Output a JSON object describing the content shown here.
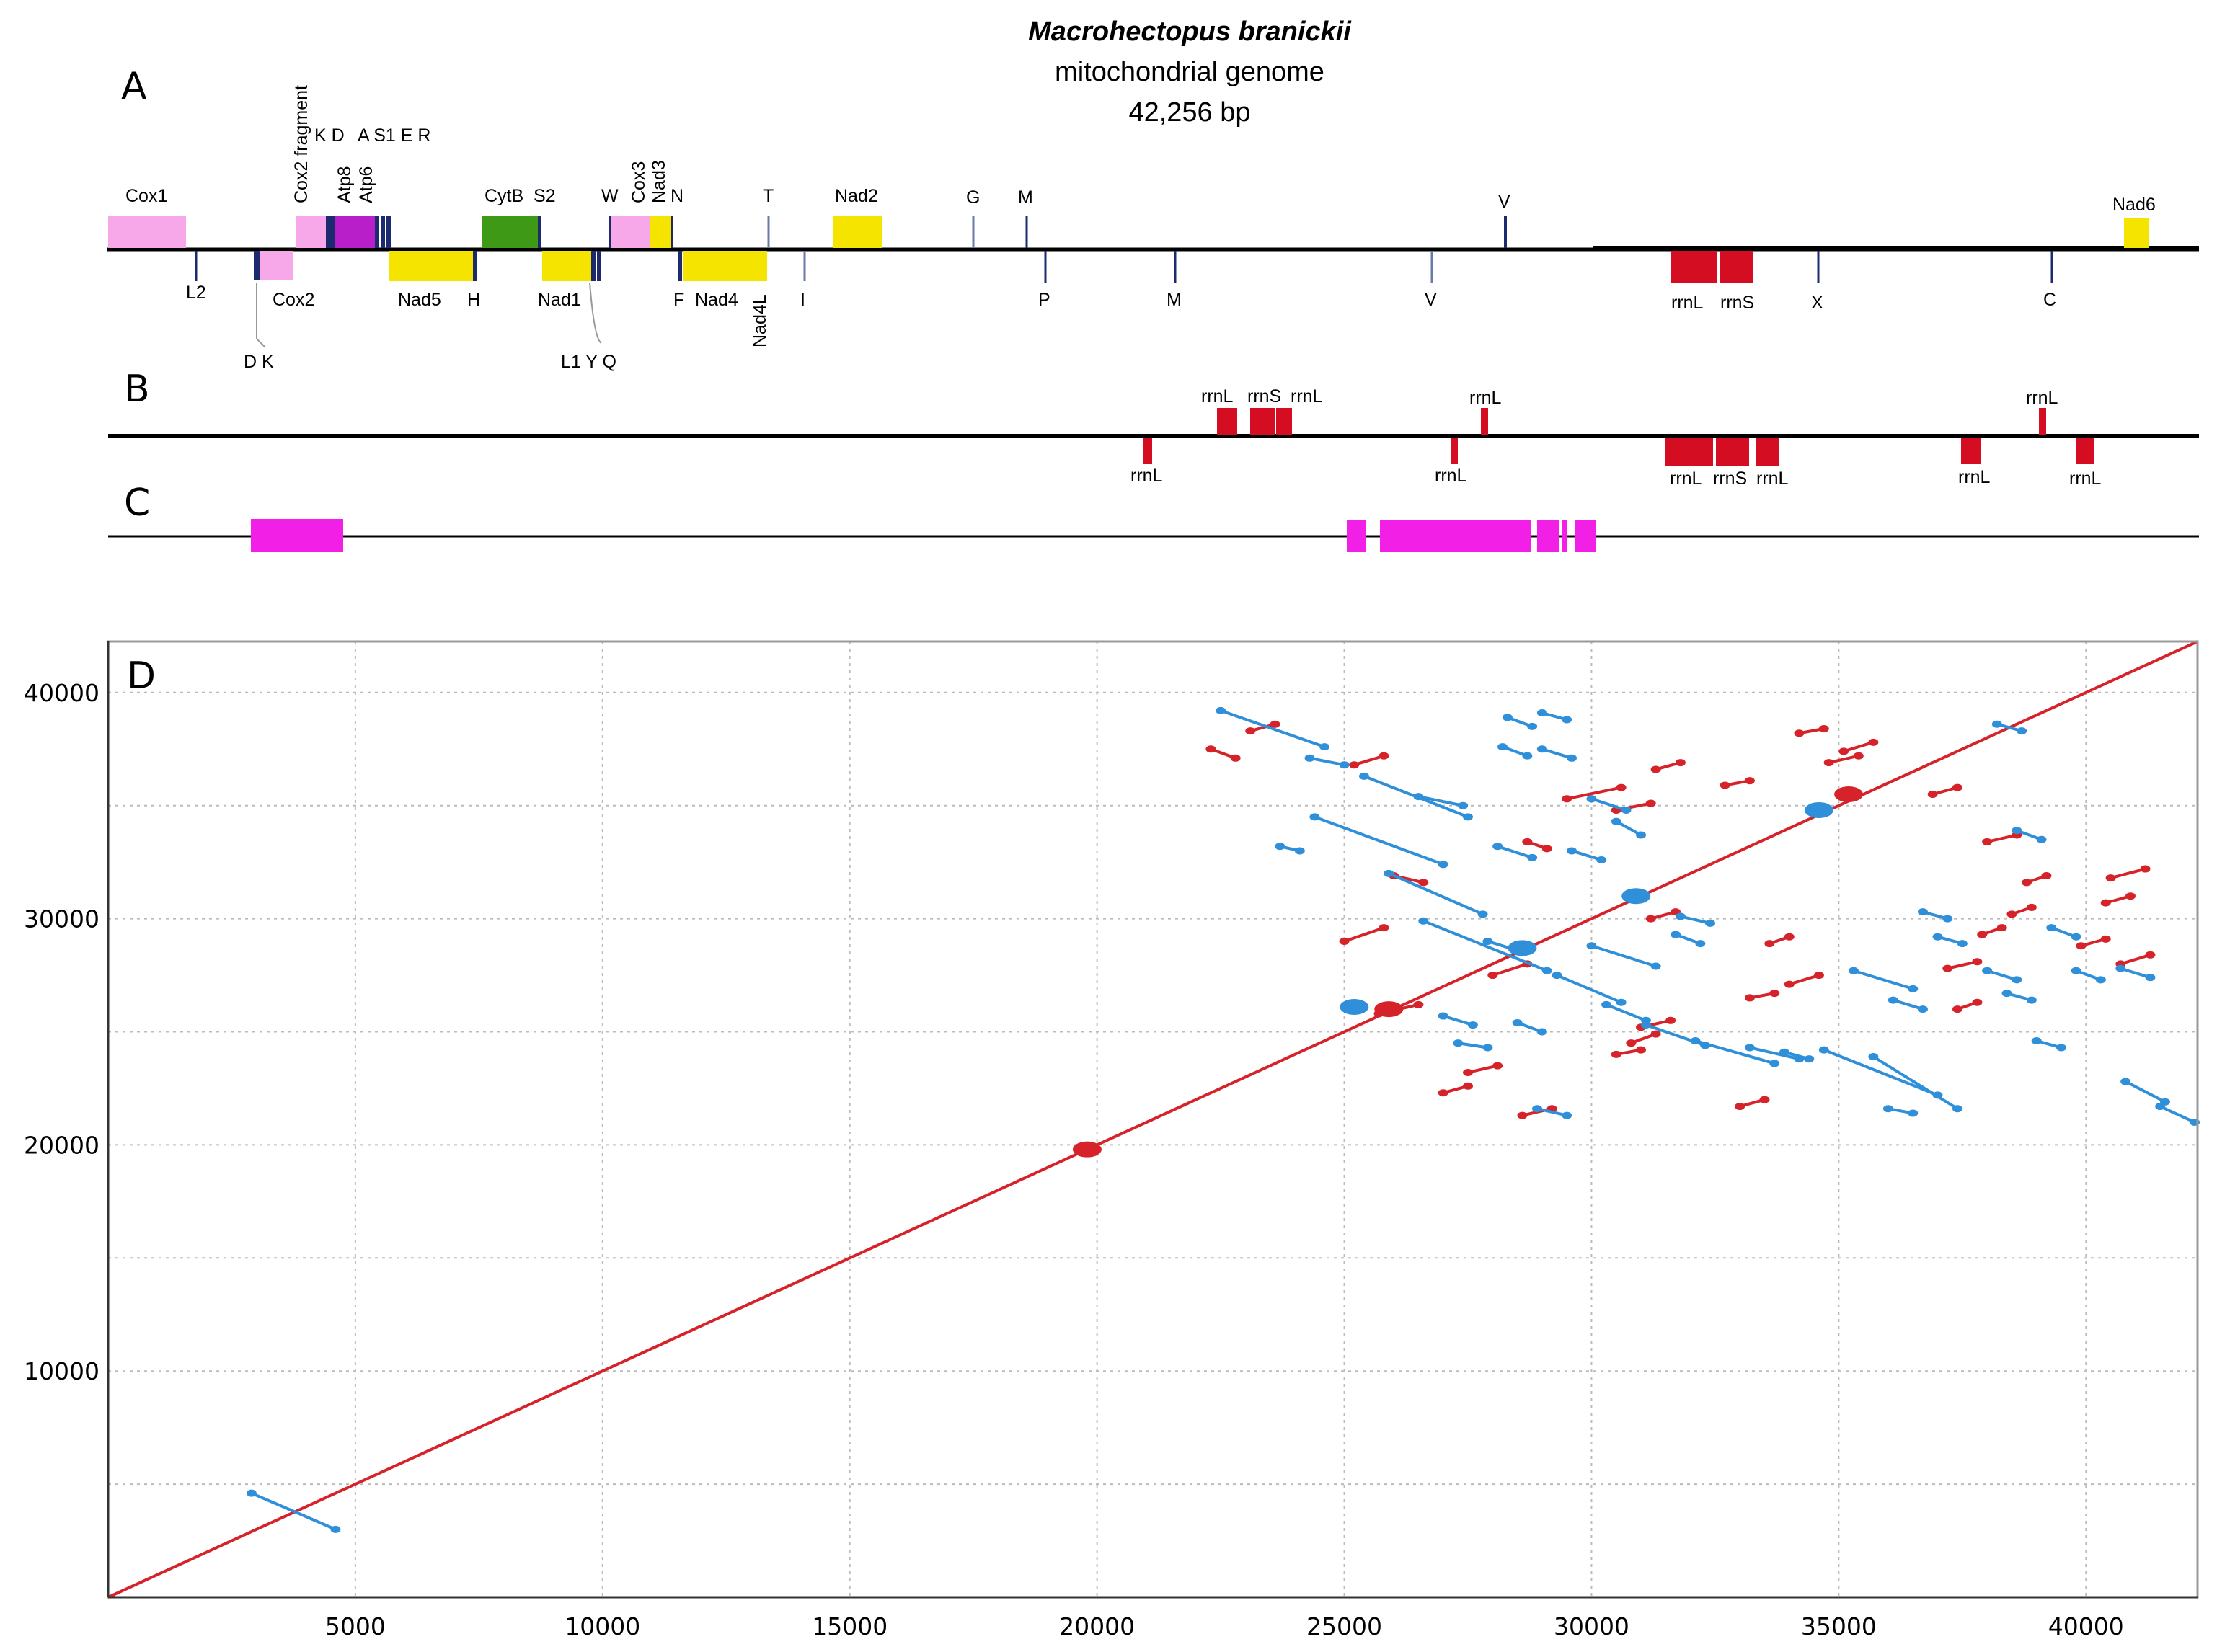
{
  "title": {
    "species": "Macrohectopus branickii",
    "line2": "mitochondrial genome",
    "line3": "42,256 bp"
  },
  "panels": {
    "a": "A",
    "b": "B",
    "c": "C",
    "d": "D"
  },
  "colors": {
    "cox": "#f7a8e8",
    "atp": "#b81fc8",
    "nad": "#f5e400",
    "cytb": "#3e9a16",
    "rrn": "#d40d22",
    "trna": "#1e2a6e",
    "repeat": "#f21fe6",
    "dot_forward": "#d6232a",
    "dot_reverse": "#2f8fd8"
  },
  "genemap_labels": {
    "top": [
      "Cox1",
      "Cox2 fragment",
      "K D",
      "A S1 E R",
      "Atp8",
      "Atp6",
      "CytB",
      "S2",
      "W",
      "Cox3",
      "Nad3",
      "N",
      "T",
      "Nad2",
      "G",
      "M",
      "V",
      "Nad6"
    ],
    "bottom": [
      "L2",
      "Cox2",
      "D K",
      "Nad5",
      "H",
      "Nad1",
      "L1 Y Q",
      "F",
      "Nad4",
      "Nad4L",
      "I",
      "P",
      "M",
      "V",
      "rrnL",
      "rrnS",
      "X",
      "C"
    ]
  },
  "panelB_labels": {
    "top": [
      "rrnL",
      "rrnS",
      "rrnL",
      "rrnL",
      "rrnL"
    ],
    "bottom": [
      "rrnL",
      "rrnL",
      "rrnL",
      "rrnS",
      "rrnL",
      "rrnL",
      "rrnL"
    ]
  },
  "chart_data": {
    "type": "scatter",
    "title": "",
    "xlabel": "",
    "ylabel": "",
    "xlim": [
      0,
      42256
    ],
    "ylim": [
      0,
      42256
    ],
    "x_ticks": [
      5000,
      10000,
      15000,
      20000,
      25000,
      30000,
      35000,
      40000
    ],
    "y_ticks": [
      10000,
      20000,
      30000,
      40000
    ],
    "grid": true,
    "series": [
      {
        "name": "forward",
        "color": "#d6232a",
        "segments": [
          [
            22300,
            37500,
            22800,
            37100
          ],
          [
            23100,
            38300,
            23600,
            38600
          ],
          [
            25200,
            36800,
            25800,
            37200
          ],
          [
            25000,
            29000,
            25800,
            29600
          ],
          [
            26000,
            31900,
            26600,
            31600
          ],
          [
            28700,
            33400,
            29100,
            33100
          ],
          [
            29500,
            35300,
            30600,
            35800
          ],
          [
            30500,
            34800,
            31200,
            35100
          ],
          [
            31300,
            36600,
            31800,
            36900
          ],
          [
            31200,
            30000,
            31700,
            30300
          ],
          [
            32700,
            35900,
            33200,
            36100
          ],
          [
            33600,
            28900,
            34000,
            29200
          ],
          [
            33200,
            26500,
            33700,
            26700
          ],
          [
            31000,
            25200,
            31600,
            25500
          ],
          [
            30800,
            24500,
            31300,
            24900
          ],
          [
            30500,
            24000,
            31000,
            24200
          ],
          [
            28000,
            27500,
            28700,
            28000
          ],
          [
            27000,
            22300,
            27500,
            22600
          ],
          [
            27500,
            23200,
            28100,
            23500
          ],
          [
            28600,
            21300,
            29200,
            21600
          ],
          [
            25700,
            25800,
            26500,
            26200
          ],
          [
            33000,
            21700,
            33500,
            22000
          ],
          [
            34000,
            27100,
            34600,
            27500
          ],
          [
            34200,
            38200,
            34700,
            38400
          ],
          [
            35100,
            37400,
            35700,
            37800
          ],
          [
            34800,
            36900,
            35400,
            37200
          ],
          [
            36900,
            35500,
            37400,
            35800
          ],
          [
            38000,
            33400,
            38600,
            33700
          ],
          [
            38800,
            31600,
            39200,
            31900
          ],
          [
            38500,
            30200,
            38900,
            30500
          ],
          [
            37900,
            29300,
            38300,
            29600
          ],
          [
            37200,
            27800,
            37800,
            28100
          ],
          [
            37400,
            26000,
            37800,
            26300
          ],
          [
            40500,
            31800,
            41200,
            32200
          ],
          [
            40400,
            30700,
            40900,
            31000
          ],
          [
            39900,
            28800,
            40400,
            29100
          ],
          [
            40700,
            28000,
            41300,
            28400
          ]
        ],
        "diagonal": [
          0,
          0,
          42256,
          42256
        ]
      },
      {
        "name": "reverse",
        "color": "#2f8fd8",
        "segments": [
          [
            2900,
            4600,
            4600,
            3000
          ],
          [
            22500,
            39200,
            24600,
            37600
          ],
          [
            24300,
            37100,
            25000,
            36800
          ],
          [
            25400,
            36300,
            27500,
            34500
          ],
          [
            26500,
            35400,
            27400,
            35000
          ],
          [
            28300,
            38900,
            28800,
            38500
          ],
          [
            28200,
            37600,
            28700,
            37200
          ],
          [
            29000,
            39100,
            29500,
            38800
          ],
          [
            29000,
            37500,
            29600,
            37100
          ],
          [
            30000,
            35300,
            30700,
            34800
          ],
          [
            30500,
            34300,
            31000,
            33700
          ],
          [
            28100,
            33200,
            28800,
            32700
          ],
          [
            29600,
            33000,
            30200,
            32600
          ],
          [
            24400,
            34500,
            27000,
            32400
          ],
          [
            23700,
            33200,
            24100,
            33000
          ],
          [
            25900,
            32000,
            27800,
            30200
          ],
          [
            26600,
            29900,
            29100,
            27700
          ],
          [
            27900,
            29000,
            28500,
            28600
          ],
          [
            30000,
            28800,
            31300,
            27900
          ],
          [
            31800,
            30100,
            32400,
            29800
          ],
          [
            31700,
            29300,
            32200,
            28900
          ],
          [
            29300,
            27500,
            30600,
            26300
          ],
          [
            30300,
            26200,
            31100,
            25500
          ],
          [
            31100,
            25300,
            32300,
            24400
          ],
          [
            32100,
            24600,
            33700,
            23600
          ],
          [
            33200,
            24300,
            34200,
            23800
          ],
          [
            33900,
            24100,
            34400,
            23800
          ],
          [
            27000,
            25700,
            27600,
            25300
          ],
          [
            28500,
            25400,
            29000,
            25000
          ],
          [
            27300,
            24500,
            27900,
            24300
          ],
          [
            28900,
            21600,
            29500,
            21300
          ],
          [
            34700,
            24200,
            37000,
            22200
          ],
          [
            35700,
            23900,
            37400,
            21600
          ],
          [
            36000,
            21600,
            36500,
            21400
          ],
          [
            35300,
            27700,
            36500,
            26900
          ],
          [
            36100,
            26400,
            36700,
            26000
          ],
          [
            38000,
            27700,
            38600,
            27300
          ],
          [
            38400,
            26700,
            38900,
            26400
          ],
          [
            39000,
            24600,
            39500,
            24300
          ],
          [
            36700,
            30300,
            37200,
            30000
          ],
          [
            37000,
            29200,
            37500,
            28900
          ],
          [
            39300,
            29600,
            39800,
            29200
          ],
          [
            39800,
            27700,
            40300,
            27300
          ],
          [
            40700,
            27800,
            41300,
            27400
          ],
          [
            40800,
            22800,
            41600,
            21900
          ],
          [
            41500,
            21700,
            42200,
            21000
          ],
          [
            38200,
            38600,
            38700,
            38300
          ],
          [
            38600,
            33900,
            39100,
            33500
          ]
        ]
      }
    ],
    "blobs": [
      {
        "x": 19800,
        "y": 19800,
        "series": "forward"
      },
      {
        "x": 25900,
        "y": 26000,
        "series": "forward"
      },
      {
        "x": 34600,
        "y": 34800,
        "series": "reverse"
      },
      {
        "x": 35200,
        "y": 35500,
        "series": "forward"
      },
      {
        "x": 30900,
        "y": 31000,
        "series": "reverse"
      },
      {
        "x": 25200,
        "y": 26100,
        "series": "reverse"
      },
      {
        "x": 28600,
        "y": 28700,
        "series": "reverse"
      }
    ]
  }
}
